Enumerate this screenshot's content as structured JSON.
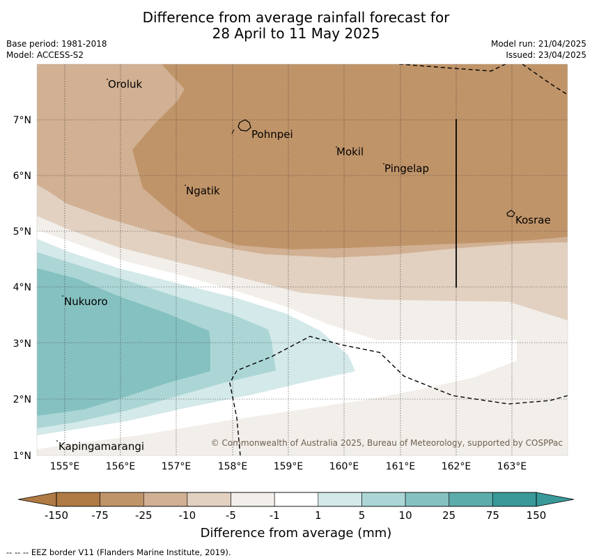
{
  "title": {
    "line1": "Difference from average rainfall forecast for",
    "line2": "28 April to 11 May 2025"
  },
  "meta": {
    "base_period": "Base period: 1981-2018",
    "model": "Model: ACCESS-S2",
    "model_run": "Model run: 21/04/2025",
    "issued": "Issued: 23/04/2025"
  },
  "map": {
    "lat_labels": [
      "1°N",
      "2°N",
      "3°N",
      "4°N",
      "5°N",
      "6°N",
      "7°N"
    ],
    "lon_labels": [
      "155°E",
      "156°E",
      "157°E",
      "158°E",
      "159°E",
      "160°E",
      "161°E",
      "162°E",
      "163°E"
    ],
    "places": {
      "oroluk": "Oroluk",
      "pohnpei": "Pohnpei",
      "mokil": "Mokil",
      "pingelap": "Pingelap",
      "ngatik": "Ngatik",
      "kosrae": "Kosrae",
      "nukuoro": "Nukuoro",
      "kapingamarangi": "Kapingamarangi"
    },
    "copyright": "© Commonwealth of Australia 2025, Bureau of Meteorology, supported by COSPPac"
  },
  "colorbar": {
    "labels": [
      "-150",
      "-75",
      "-25",
      "-10",
      "-5",
      "-1",
      "1",
      "5",
      "10",
      "25",
      "75",
      "150"
    ],
    "colors": [
      "#b07a44",
      "#c09469",
      "#d1b093",
      "#e2d1c1",
      "#f2eee9",
      "#ffffff",
      "#d4e9e9",
      "#acd6d6",
      "#86c1c1",
      "#5cacab",
      "#3a9999"
    ],
    "title": "Difference from average (mm)"
  },
  "footer": "--  --  -- EEZ border V11 (Flanders Marine Institute, 2019)."
}
